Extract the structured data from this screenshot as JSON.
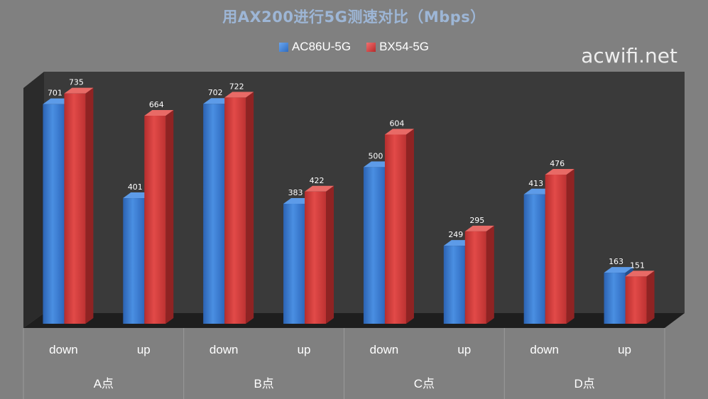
{
  "title": "用AX200进行5G测速对比（Mbps）",
  "watermark": "acwifi.net",
  "legend": [
    {
      "label": "AC86U-5G",
      "icon": "blue-square"
    },
    {
      "label": "BX54-5G",
      "icon": "red-square"
    }
  ],
  "colors": {
    "series1": "#3a7dd4",
    "series2": "#d63c3c",
    "background": "#808080",
    "plot_back": "#3a3a3a",
    "plot_side": "#2b2b2b",
    "floor": "#1e1e1e"
  },
  "chart_data": {
    "type": "bar",
    "style": "3d-clustered-column",
    "title": "用AX200进行5G测速对比（Mbps）",
    "groups": [
      "A点",
      "B点",
      "C点",
      "D点"
    ],
    "categories": [
      "down",
      "up",
      "down",
      "up",
      "down",
      "up",
      "down",
      "up"
    ],
    "series": [
      {
        "name": "AC86U-5G",
        "values": [
          701,
          401,
          702,
          383,
          500,
          249,
          413,
          163
        ]
      },
      {
        "name": "BX54-5G",
        "values": [
          735,
          664,
          722,
          422,
          604,
          295,
          476,
          151
        ]
      }
    ],
    "ylim": [
      0,
      800
    ],
    "grid": false,
    "legend_position": "top"
  }
}
